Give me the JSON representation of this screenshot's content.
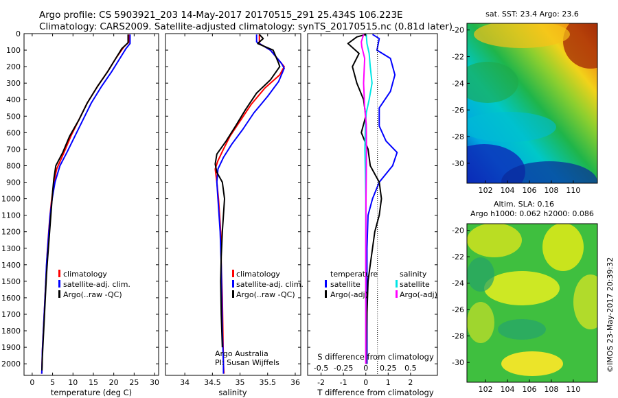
{
  "title_line1": "Argo profile: CS 5903921_203 14-May-2017 20170515_291 25.434S 106.223E",
  "title_line2": "Climatology: CARS2009. Satellite-adjusted climatology: synTS_20170515.nc (0.81d later)",
  "credit": "Argo Australia",
  "pi": "PI: Susan Wijffels",
  "imos_stamp": "©IMOS 23-May-2017 20:39:32",
  "colors": {
    "climatology": "#ff0000",
    "satellite": "#0000ff",
    "argo": "#000000",
    "salinity_satellite": "#00e5e5",
    "salinity_argo": "#ff00ff"
  },
  "chart_data": [
    {
      "type": "line",
      "id": "temperature",
      "xlabel": "temperature (deg C)",
      "ylabel": "",
      "xlim": [
        -2,
        31
      ],
      "ylim": [
        2070,
        0
      ],
      "xticks": [
        0,
        5,
        10,
        15,
        20,
        25,
        30
      ],
      "yticks": [
        0,
        100,
        200,
        300,
        400,
        500,
        600,
        700,
        800,
        900,
        1000,
        1100,
        1200,
        1300,
        1400,
        1500,
        1600,
        1700,
        1800,
        1900,
        2000
      ],
      "legend": [
        "climatology",
        "satellite-adj. clim.",
        "Argo(..raw -QC)"
      ],
      "series": [
        {
          "name": "climatology",
          "color": "#ff0000",
          "points": [
            [
              23.8,
              5
            ],
            [
              23.8,
              50
            ],
            [
              22.5,
              80
            ],
            [
              20.5,
              150
            ],
            [
              18.5,
              230
            ],
            [
              16,
              320
            ],
            [
              13.5,
              420
            ],
            [
              11.5,
              520
            ],
            [
              9.5,
              620
            ],
            [
              7.8,
              720
            ],
            [
              6,
              820
            ],
            [
              5.2,
              920
            ],
            [
              4.7,
              1020
            ],
            [
              4.3,
              1120
            ],
            [
              4.0,
              1220
            ],
            [
              3.7,
              1320
            ],
            [
              3.5,
              1420
            ],
            [
              3.3,
              1520
            ],
            [
              3.1,
              1620
            ],
            [
              2.9,
              1720
            ],
            [
              2.7,
              1820
            ],
            [
              2.5,
              1920
            ],
            [
              2.4,
              2020
            ],
            [
              2.35,
              2060
            ]
          ]
        },
        {
          "name": "satellite-adj. clim.",
          "color": "#0000ff",
          "points": [
            [
              24,
              5
            ],
            [
              24,
              60
            ],
            [
              23,
              90
            ],
            [
              21.5,
              150
            ],
            [
              19.5,
              230
            ],
            [
              17,
              320
            ],
            [
              14.5,
              420
            ],
            [
              12.5,
              520
            ],
            [
              10.5,
              620
            ],
            [
              8.5,
              720
            ],
            [
              6.8,
              800
            ],
            [
              5.6,
              900
            ],
            [
              4.9,
              1000
            ],
            [
              4.4,
              1100
            ],
            [
              4.1,
              1200
            ],
            [
              3.8,
              1300
            ],
            [
              3.5,
              1400
            ],
            [
              3.3,
              1520
            ],
            [
              3.1,
              1620
            ],
            [
              2.9,
              1720
            ],
            [
              2.7,
              1820
            ],
            [
              2.5,
              1920
            ],
            [
              2.4,
              2020
            ],
            [
              2.35,
              2060
            ]
          ]
        },
        {
          "name": "Argo(..raw -QC)",
          "color": "#000000",
          "points": [
            [
              23.5,
              5
            ],
            [
              23.5,
              55
            ],
            [
              22,
              90
            ],
            [
              20.5,
              150
            ],
            [
              18.5,
              230
            ],
            [
              16,
              320
            ],
            [
              13.5,
              420
            ],
            [
              11.5,
              520
            ],
            [
              9.2,
              620
            ],
            [
              7.5,
              720
            ],
            [
              5.8,
              800
            ],
            [
              5.3,
              880
            ],
            [
              5,
              960
            ],
            [
              4.7,
              1060
            ],
            [
              4.4,
              1160
            ],
            [
              4.1,
              1260
            ],
            [
              3.8,
              1360
            ],
            [
              3.5,
              1460
            ],
            [
              3.3,
              1560
            ],
            [
              3.1,
              1660
            ],
            [
              2.9,
              1760
            ],
            [
              2.7,
              1860
            ],
            [
              2.5,
              1960
            ],
            [
              2.4,
              2040
            ]
          ]
        }
      ]
    },
    {
      "type": "line",
      "id": "salinity",
      "xlabel": "salinity",
      "xlim": [
        33.65,
        36.1
      ],
      "ylim": [
        2070,
        0
      ],
      "xticks": [
        34,
        34.5,
        35,
        35.5,
        36
      ],
      "legend": [
        "climatology",
        "satellite-adj. clim.",
        "Argo(..raw -QC)"
      ],
      "series": [
        {
          "name": "climatology",
          "color": "#ff0000",
          "points": [
            [
              35.35,
              5
            ],
            [
              35.35,
              60
            ],
            [
              35.55,
              100
            ],
            [
              35.75,
              180
            ],
            [
              35.8,
              200
            ],
            [
              35.72,
              250
            ],
            [
              35.45,
              330
            ],
            [
              35.2,
              430
            ],
            [
              35,
              530
            ],
            [
              34.82,
              620
            ],
            [
              34.7,
              700
            ],
            [
              34.6,
              770
            ],
            [
              34.55,
              820
            ],
            [
              34.58,
              900
            ],
            [
              34.61,
              1000
            ],
            [
              34.63,
              1100
            ],
            [
              34.65,
              1200
            ],
            [
              34.66,
              1400
            ],
            [
              34.68,
              1600
            ],
            [
              34.69,
              1800
            ],
            [
              34.7,
              2000
            ],
            [
              34.71,
              2060
            ]
          ]
        },
        {
          "name": "satellite-adj. clim.",
          "color": "#0000ff",
          "points": [
            [
              35.3,
              5
            ],
            [
              35.3,
              50
            ],
            [
              35.55,
              100
            ],
            [
              35.75,
              180
            ],
            [
              35.8,
              210
            ],
            [
              35.7,
              290
            ],
            [
              35.5,
              380
            ],
            [
              35.25,
              480
            ],
            [
              35.05,
              580
            ],
            [
              34.85,
              670
            ],
            [
              34.7,
              750
            ],
            [
              34.6,
              820
            ],
            [
              34.58,
              900
            ],
            [
              34.6,
              1000
            ],
            [
              34.62,
              1100
            ],
            [
              34.64,
              1200
            ],
            [
              34.66,
              1400
            ],
            [
              34.67,
              1600
            ],
            [
              34.68,
              1800
            ],
            [
              34.7,
              2000
            ],
            [
              34.7,
              2060
            ]
          ]
        },
        {
          "name": "Argo(..raw -QC)",
          "color": "#000000",
          "points": [
            [
              35.35,
              5
            ],
            [
              35.42,
              30
            ],
            [
              35.32,
              60
            ],
            [
              35.6,
              100
            ],
            [
              35.7,
              180
            ],
            [
              35.72,
              200
            ],
            [
              35.55,
              280
            ],
            [
              35.3,
              360
            ],
            [
              35.1,
              460
            ],
            [
              34.92,
              560
            ],
            [
              34.75,
              650
            ],
            [
              34.58,
              730
            ],
            [
              34.55,
              790
            ],
            [
              34.58,
              840
            ],
            [
              34.68,
              900
            ],
            [
              34.72,
              1000
            ],
            [
              34.7,
              1100
            ],
            [
              34.68,
              1200
            ],
            [
              34.66,
              1350
            ],
            [
              34.65,
              1500
            ],
            [
              34.66,
              1700
            ],
            [
              34.68,
              1900
            ]
          ]
        }
      ]
    },
    {
      "type": "line",
      "id": "differences",
      "xlabel": "T difference from climatology",
      "top_label": "S difference from climatology",
      "xlim": [
        -2.6,
        3.2
      ],
      "ylim": [
        2070,
        0
      ],
      "xticks": [
        -2,
        -1,
        0,
        1,
        2
      ],
      "top_ticks": [
        "-0.5",
        "-0.25",
        "0",
        "0.25",
        "0.5"
      ],
      "legend_temperature_title": "temperature",
      "legend_salinity_title": "salinity",
      "legend": [
        "satellite",
        "Argo(-adj)",
        "satellite",
        "Argo(-adj)"
      ],
      "series": [
        {
          "name": "T satellite",
          "color": "#0000ff",
          "points": [
            [
              0.3,
              5
            ],
            [
              0.6,
              30
            ],
            [
              0.5,
              100
            ],
            [
              1.1,
              150
            ],
            [
              1.3,
              250
            ],
            [
              1.1,
              350
            ],
            [
              0.6,
              450
            ],
            [
              0.6,
              560
            ],
            [
              0.9,
              650
            ],
            [
              1.4,
              720
            ],
            [
              1.2,
              800
            ],
            [
              0.6,
              900
            ],
            [
              0.3,
              1000
            ],
            [
              0.1,
              1100
            ],
            [
              0.05,
              1300
            ],
            [
              0.05,
              1600
            ],
            [
              0.05,
              2000
            ]
          ]
        },
        {
          "name": "T Argo(-adj)",
          "color": "#000000",
          "points": [
            [
              0,
              5
            ],
            [
              -0.4,
              20
            ],
            [
              -0.8,
              60
            ],
            [
              -0.3,
              120
            ],
            [
              -0.6,
              200
            ],
            [
              -0.4,
              300
            ],
            [
              -0.1,
              400
            ],
            [
              0,
              500
            ],
            [
              -0.2,
              600
            ],
            [
              0.1,
              700
            ],
            [
              0.2,
              800
            ],
            [
              0.6,
              900
            ],
            [
              0.7,
              1000
            ],
            [
              0.6,
              1100
            ],
            [
              0.4,
              1200
            ],
            [
              0.3,
              1300
            ],
            [
              0.2,
              1400
            ],
            [
              0.1,
              1500
            ],
            [
              0.05,
              1700
            ],
            [
              0.02,
              1900
            ],
            [
              0.02,
              2000
            ]
          ]
        },
        {
          "name": "S satellite",
          "color": "#00e5e5",
          "points": [
            [
              0.02,
              5
            ],
            [
              0.05,
              60
            ],
            [
              0.15,
              120
            ],
            [
              0.2,
              200
            ],
            [
              0.28,
              300
            ],
            [
              0.15,
              400
            ],
            [
              0.02,
              480
            ],
            [
              -0.02,
              560
            ],
            [
              -0.04,
              700
            ],
            [
              -0.02,
              850
            ],
            [
              0,
              1000
            ],
            [
              0,
              1300
            ],
            [
              0,
              1600
            ],
            [
              0,
              2000
            ]
          ]
        },
        {
          "name": "S Argo(-adj)",
          "color": "#ff00ff",
          "points": [
            [
              -0.1,
              5
            ],
            [
              -0.2,
              50
            ],
            [
              -0.18,
              80
            ],
            [
              -0.05,
              150
            ],
            [
              -0.1,
              300
            ],
            [
              -0.05,
              450
            ],
            [
              0.02,
              550
            ],
            [
              0.03,
              700
            ],
            [
              0.02,
              850
            ],
            [
              0.01,
              1000
            ],
            [
              0,
              1300
            ],
            [
              0,
              2000
            ]
          ]
        }
      ]
    },
    {
      "type": "heatmap",
      "id": "sst-map",
      "title": "sat. SST: 23.4  Argo: 23.6",
      "xlim": [
        100.3,
        112.2
      ],
      "ylim": [
        -31.5,
        -19.5
      ],
      "xticks": [
        102,
        104,
        106,
        108,
        110
      ],
      "yticks": [
        -20,
        -22,
        -24,
        -26,
        -28,
        -30
      ],
      "colormap": "jet"
    },
    {
      "type": "heatmap",
      "id": "sla-map",
      "title": "Altim. SLA: 0.16",
      "subtitle": "Argo h1000: 0.062  h2000: 0.086",
      "xlim": [
        100.3,
        112.2
      ],
      "ylim": [
        -31.5,
        -19.5
      ],
      "xticks": [
        102,
        104,
        106,
        108,
        110
      ],
      "yticks": [
        -20,
        -22,
        -24,
        -26,
        -28,
        -30
      ],
      "colormap": "jet"
    }
  ]
}
